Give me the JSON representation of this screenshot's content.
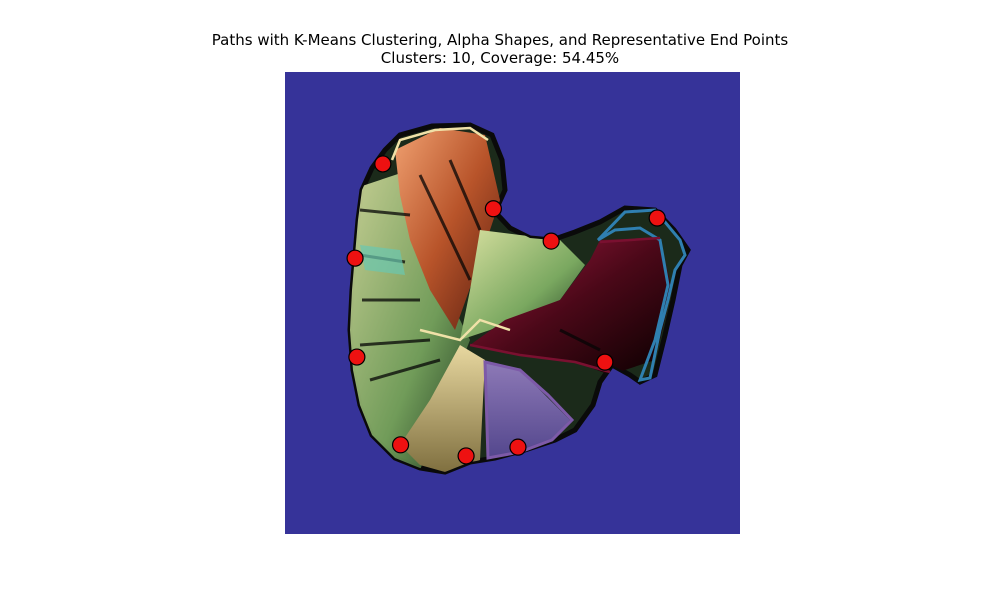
{
  "chart_data": {
    "type": "scatter",
    "title": "Paths with K-Means Clustering, Alpha Shapes, and Representative End Points",
    "subtitle": "Clusters: 10, Coverage: 54.45%",
    "xlabel": "",
    "ylabel": "",
    "axes_visible": false,
    "grid": false,
    "background_color": "#363399",
    "marker_color": "#ee1111",
    "cluster_outline_colors": [
      "#2f7fb0",
      "#7d5aa8",
      "#f0e1a8",
      "#7a1030",
      "#e8d9b0"
    ],
    "representative_end_points": [
      {
        "x": 0.215,
        "y": 0.199
      },
      {
        "x": 0.458,
        "y": 0.296
      },
      {
        "x": 0.585,
        "y": 0.366
      },
      {
        "x": 0.818,
        "y": 0.316
      },
      {
        "x": 0.154,
        "y": 0.403
      },
      {
        "x": 0.158,
        "y": 0.617
      },
      {
        "x": 0.703,
        "y": 0.628
      },
      {
        "x": 0.254,
        "y": 0.807
      },
      {
        "x": 0.398,
        "y": 0.831
      },
      {
        "x": 0.512,
        "y": 0.812
      }
    ]
  }
}
